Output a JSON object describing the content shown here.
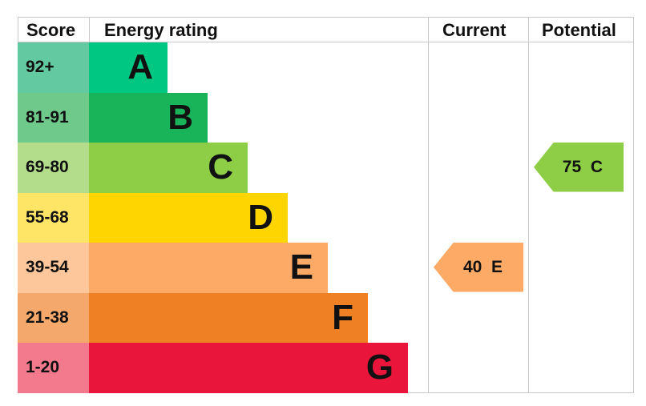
{
  "chart_data": {
    "type": "bar",
    "headers": {
      "score": "Score",
      "rating": "Energy rating",
      "current": "Current",
      "potential": "Potential"
    },
    "bands": [
      {
        "range": "92+",
        "letter": "A",
        "color": "#00c781",
        "score_color": "#63c9a1"
      },
      {
        "range": "81-91",
        "letter": "B",
        "color": "#19b459",
        "score_color": "#6ec98b"
      },
      {
        "range": "69-80",
        "letter": "C",
        "color": "#8dce46",
        "score_color": "#b4dd8b"
      },
      {
        "range": "55-68",
        "letter": "D",
        "color": "#ffd500",
        "score_color": "#ffe566"
      },
      {
        "range": "39-54",
        "letter": "E",
        "color": "#fcaa65",
        "score_color": "#fdc79b"
      },
      {
        "range": "21-38",
        "letter": "F",
        "color": "#ef8023",
        "score_color": "#f5a86b"
      },
      {
        "range": "1-20",
        "letter": "G",
        "color": "#e9153b",
        "score_color": "#f27a8c"
      }
    ],
    "current": {
      "value": 40,
      "band": "E",
      "label": "40  E"
    },
    "potential": {
      "value": 75,
      "band": "C",
      "label": "75  C"
    }
  }
}
